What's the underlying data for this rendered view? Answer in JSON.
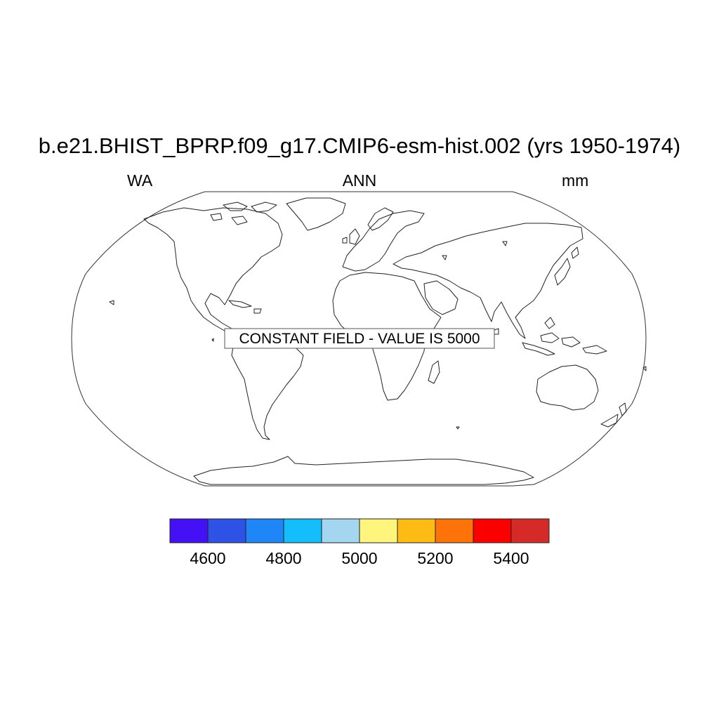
{
  "title": "b.e21.BHIST_BPRP.f09_g17.CMIP6-esm-hist.002 (yrs 1950-1974)",
  "subtitle": {
    "left": "WA",
    "center": "ANN",
    "right": "mm"
  },
  "notice": "CONSTANT FIELD - VALUE IS 5000",
  "colorbar": {
    "colors": [
      "#4410f5",
      "#2f52e6",
      "#1e86f7",
      "#14bdfb",
      "#a4d6f0",
      "#fff47c",
      "#fdbb14",
      "#fd730a",
      "#fc0000",
      "#d62a28"
    ],
    "tick_labels": [
      "4600",
      "4800",
      "5000",
      "5200",
      "5400"
    ]
  }
}
